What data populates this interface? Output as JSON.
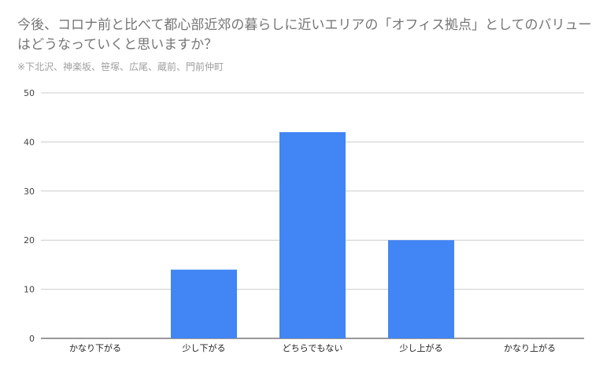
{
  "chart_data": {
    "type": "bar",
    "title": "今後、コロナ前と比べて都心部近郊の暮らしに近いエリアの「オフィス拠点」としてのバリューはどうなっていくと思いますか？",
    "subtitle": "※下北沢、神楽坂、笹塚、広尾、蔵前、門前仲町",
    "categories": [
      "かなり下がる",
      "少し下がる",
      "どちらでもない",
      "少し上がる",
      "かなり上がる"
    ],
    "values": [
      0,
      14,
      42,
      20,
      0
    ],
    "ylim": [
      0,
      50
    ],
    "yticks": [
      0,
      10,
      20,
      30,
      40,
      50
    ],
    "xlabel": "",
    "ylabel": "",
    "grid": true,
    "legend": "none",
    "bar_color": "#4285f4"
  }
}
